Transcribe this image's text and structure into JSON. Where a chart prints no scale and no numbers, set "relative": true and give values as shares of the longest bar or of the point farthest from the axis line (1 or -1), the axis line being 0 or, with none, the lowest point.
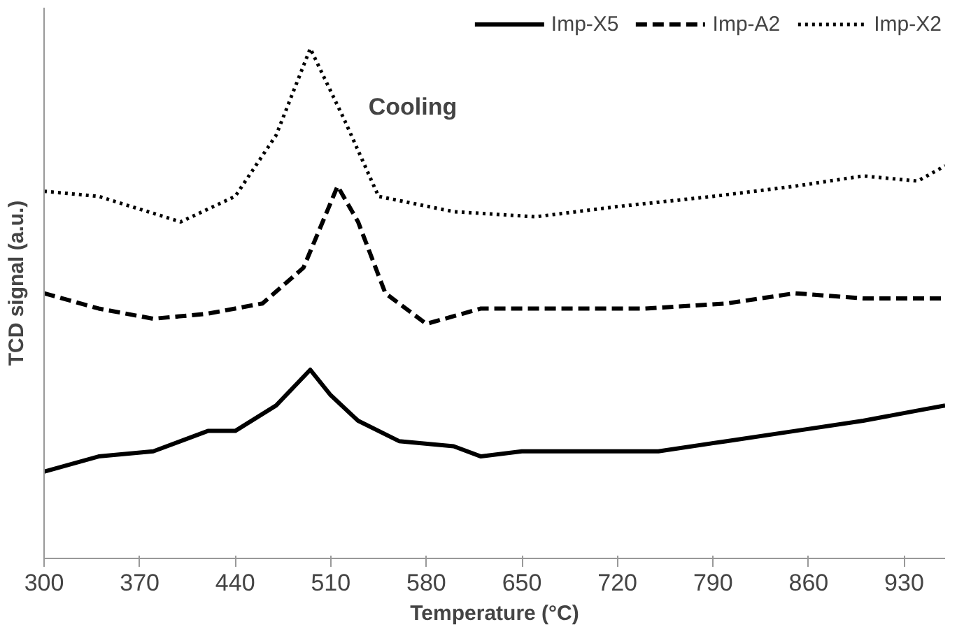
{
  "chart_data": {
    "type": "line",
    "relative": true,
    "xlabel": "Temperature (°C)",
    "ylabel": "TCD signal (a.u.)",
    "annotations": [
      "Cooling"
    ],
    "xlim": [
      300,
      960
    ],
    "xticks": [
      300,
      370,
      440,
      510,
      580,
      650,
      720,
      790,
      860,
      930
    ],
    "legend": "top",
    "grid": false,
    "x": [
      300,
      340,
      380,
      420,
      440,
      470,
      495,
      510,
      530,
      560,
      600,
      620,
      650,
      700,
      750,
      800,
      850,
      900,
      940,
      960
    ],
    "series": [
      {
        "name": "Imp-X5",
        "color": "#000000",
        "line_style": "solid",
        "values": [
          0.17,
          0.2,
          0.21,
          0.25,
          0.25,
          0.3,
          0.37,
          0.32,
          0.27,
          0.23,
          0.22,
          0.2,
          0.21,
          0.21,
          0.21,
          0.23,
          0.25,
          0.27,
          0.29,
          0.3
        ]
      },
      {
        "name": "Imp-A2",
        "color": "#000000",
        "line_style": "dashed",
        "x": [
          300,
          340,
          380,
          420,
          460,
          490,
          515,
          530,
          550,
          580,
          620,
          680,
          740,
          800,
          850,
          900,
          960
        ],
        "values": [
          0.52,
          0.49,
          0.47,
          0.48,
          0.5,
          0.57,
          0.73,
          0.66,
          0.52,
          0.46,
          0.49,
          0.49,
          0.49,
          0.5,
          0.52,
          0.51,
          0.51
        ]
      },
      {
        "name": "Imp-X2",
        "color": "#000000",
        "line_style": "dotted",
        "x": [
          300,
          340,
          400,
          440,
          470,
          495,
          520,
          545,
          600,
          660,
          720,
          790,
          850,
          900,
          940,
          960
        ],
        "values": [
          0.72,
          0.71,
          0.66,
          0.71,
          0.83,
          1.0,
          0.86,
          0.71,
          0.68,
          0.67,
          0.69,
          0.71,
          0.73,
          0.75,
          0.74,
          0.77
        ]
      }
    ]
  }
}
